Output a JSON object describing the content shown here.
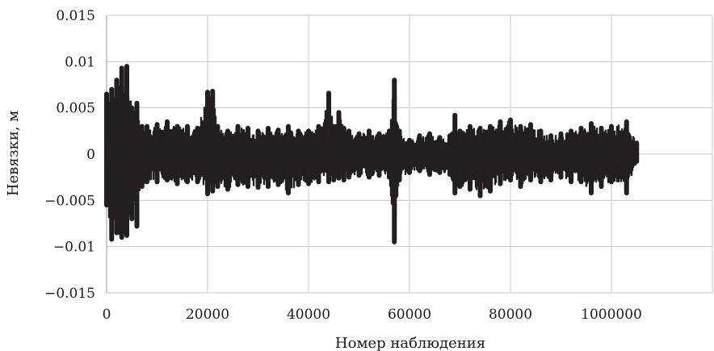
{
  "chart_data": {
    "type": "scatter",
    "xlabel": "Номер наблюдения",
    "ylabel": "Невязки, м",
    "ylim": [
      -0.015,
      0.015
    ],
    "x_ticks": [
      "0",
      "20000",
      "40000",
      "60000",
      "80000",
      "1000000"
    ],
    "y_ticks": [
      "0.015",
      "0.01",
      "0.005",
      "0",
      "−0.005",
      "−0.01",
      "−0.015"
    ],
    "y_tick_values": [
      0.015,
      0.01,
      0.005,
      0,
      -0.005,
      -0.01,
      -0.015
    ],
    "grid": true,
    "marker_color": "#231f20",
    "envelope": {
      "x": [
        0,
        1000,
        2000,
        3000,
        4000,
        5000,
        6000,
        7000,
        8000,
        10000,
        12000,
        14000,
        16000,
        18000,
        20000,
        21000,
        22000,
        24000,
        26000,
        28000,
        30000,
        32000,
        34000,
        36000,
        38000,
        40000,
        42000,
        44000,
        45000,
        46000,
        47000,
        48000,
        50000,
        52000,
        54000,
        56000,
        57000,
        58000,
        60000,
        62000,
        64000,
        66000,
        68000,
        69000,
        70000,
        72000,
        74000,
        76000,
        78000,
        80000,
        82000,
        84000,
        86000,
        88000,
        90000,
        92000,
        94000,
        96000,
        98000,
        100000,
        103000,
        105000
      ],
      "upper": [
        0.0065,
        0.007,
        0.008,
        0.0093,
        0.0095,
        0.005,
        0.0055,
        0.003,
        0.003,
        0.0032,
        0.0035,
        0.003,
        0.003,
        0.0028,
        0.0067,
        0.0068,
        0.003,
        0.0025,
        0.003,
        0.0028,
        0.0025,
        0.0028,
        0.0026,
        0.003,
        0.0025,
        0.0025,
        0.003,
        0.0066,
        0.003,
        0.0045,
        0.0028,
        0.0025,
        0.0022,
        0.0025,
        0.0022,
        0.0025,
        0.008,
        0.0025,
        0.0015,
        0.002,
        0.0022,
        0.0018,
        0.002,
        0.0042,
        0.0025,
        0.003,
        0.0028,
        0.003,
        0.0035,
        0.0037,
        0.003,
        0.0032,
        0.0025,
        0.002,
        0.0022,
        0.0025,
        0.0028,
        0.0033,
        0.0028,
        0.003,
        0.0035,
        0.0012
      ],
      "lower": [
        -0.0055,
        -0.0092,
        -0.0085,
        -0.009,
        -0.0088,
        -0.007,
        -0.0078,
        -0.0035,
        -0.003,
        -0.003,
        -0.0028,
        -0.0032,
        -0.003,
        -0.003,
        -0.0043,
        -0.004,
        -0.0035,
        -0.0038,
        -0.0033,
        -0.0035,
        -0.0036,
        -0.0035,
        -0.0033,
        -0.0042,
        -0.0033,
        -0.0032,
        -0.003,
        -0.003,
        -0.0028,
        -0.0026,
        -0.0028,
        -0.0025,
        -0.0023,
        -0.0025,
        -0.0023,
        -0.0025,
        -0.0095,
        -0.0028,
        -0.002,
        -0.0018,
        -0.0022,
        -0.002,
        -0.0022,
        -0.0042,
        -0.0035,
        -0.0038,
        -0.0045,
        -0.004,
        -0.0032,
        -0.0028,
        -0.0035,
        -0.0028,
        -0.003,
        -0.0028,
        -0.0025,
        -0.003,
        -0.003,
        -0.0042,
        -0.0035,
        -0.003,
        -0.0042,
        -0.0008
      ]
    }
  }
}
